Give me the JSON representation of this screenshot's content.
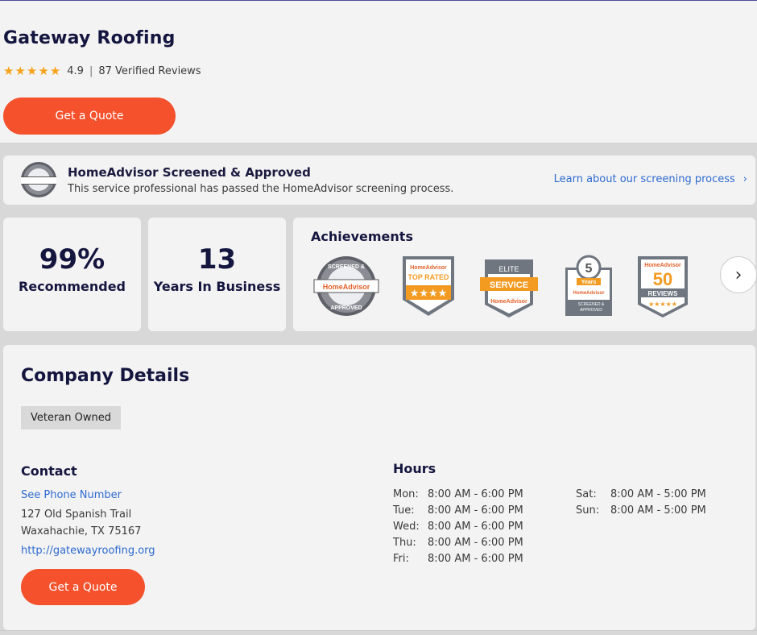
{
  "business": {
    "name": "Gateway Roofing",
    "rating": "4.9",
    "separator": "|",
    "reviews": "87 Verified Reviews",
    "star_count": 5,
    "quote_label": "Get a Quote"
  },
  "screening": {
    "title": "HomeAdvisor Screened & Approved",
    "description": "This service professional has passed the HomeAdvisor screening process.",
    "link": "Learn about our screening process",
    "link_icon": "chevron-right-icon"
  },
  "stats": [
    {
      "value": "99%",
      "label": "Recommended"
    },
    {
      "value": "13",
      "label": "Years In Business"
    }
  ],
  "achievements": {
    "title": "Achievements",
    "badges": [
      {
        "name": "screened-approved",
        "texts": [
          "SCREENED &",
          "HomeAdvisor",
          "APPROVED"
        ]
      },
      {
        "name": "top-rated",
        "texts": [
          "HomeAdvisor",
          "TOP RATED"
        ]
      },
      {
        "name": "elite-service",
        "texts": [
          "ELITE",
          "SERVICE",
          "HomeAdvisor"
        ]
      },
      {
        "name": "5-years",
        "texts": [
          "5",
          "Years",
          "HomeAdvisor",
          "SCREENED &",
          "APPROVED"
        ]
      },
      {
        "name": "50-reviews",
        "texts": [
          "HomeAdvisor",
          "50",
          "REVIEWS"
        ]
      }
    ],
    "next_icon": "chevron-right-icon"
  },
  "details": {
    "title": "Company Details",
    "tag": "Veteran Owned",
    "contact_title": "Contact",
    "phone_link": "See Phone Number",
    "address_line1": "127 Old Spanish Trail",
    "address_line2": "Waxahachie, TX 75167",
    "website": "http://gatewayroofing.org",
    "quote_label": "Get a Quote"
  },
  "hours": {
    "title": "Hours",
    "weekdays": [
      {
        "day": "Mon:",
        "time": "8:00 AM - 6:00 PM"
      },
      {
        "day": "Tue:",
        "time": "8:00 AM - 6:00 PM"
      },
      {
        "day": "Wed:",
        "time": "8:00 AM - 6:00 PM"
      },
      {
        "day": "Thu:",
        "time": "8:00 AM - 6:00 PM"
      },
      {
        "day": "Fri:",
        "time": "8:00 AM - 6:00 PM"
      }
    ],
    "weekend": [
      {
        "day": "Sat:",
        "time": "8:00 AM - 5:00 PM"
      },
      {
        "day": "Sun:",
        "time": "8:00 AM - 5:00 PM"
      }
    ]
  },
  "colors": {
    "accent": "#f4512c",
    "heading": "#15163f",
    "link": "#2f6bd1",
    "star": "#f6a31b",
    "badge_orange": "#f39a21",
    "badge_gray": "#6f7680"
  }
}
